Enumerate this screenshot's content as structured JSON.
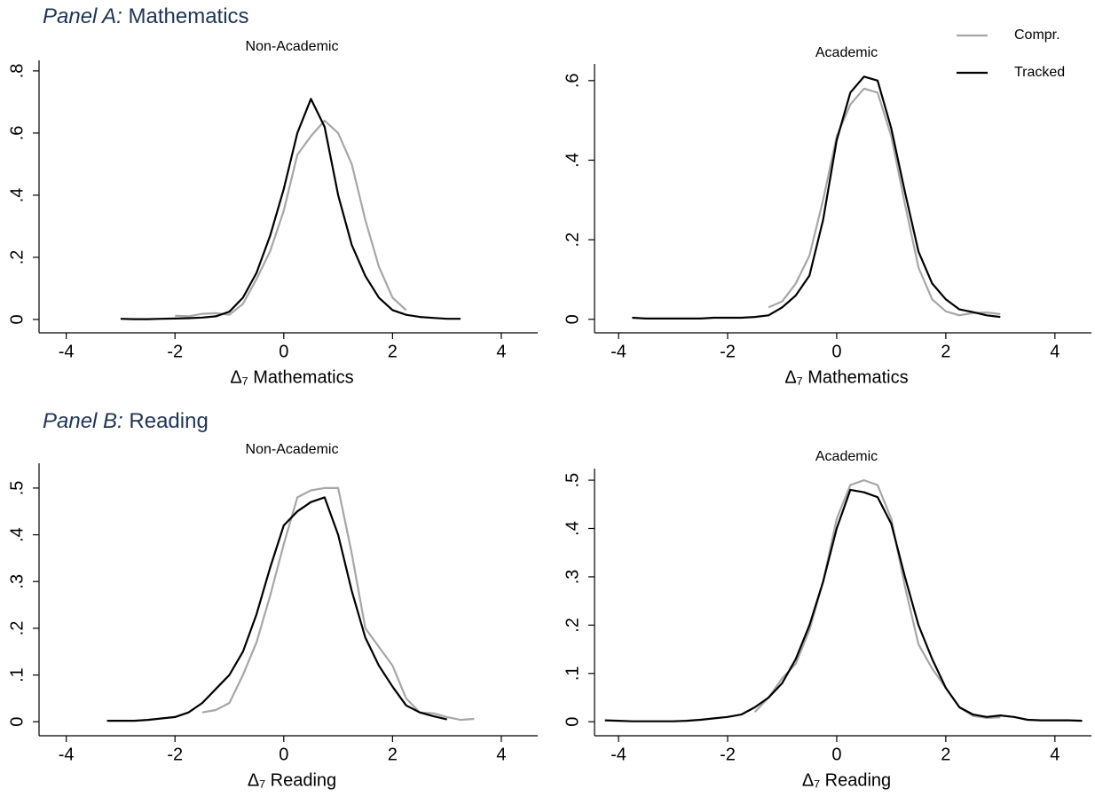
{
  "panels": [
    {
      "label": "Panel A:",
      "title": "Mathematics"
    },
    {
      "label": "Panel B:",
      "title": "Reading"
    }
  ],
  "chart_data": [
    {
      "type": "line",
      "subtitle": "Non-Academic",
      "xlabel": "Δ₇ Mathematics",
      "x": [
        -3,
        -2.75,
        -2.5,
        -2.25,
        -2,
        -1.75,
        -1.5,
        -1.25,
        -1,
        -0.75,
        -0.5,
        -0.25,
        0,
        0.25,
        0.5,
        0.75,
        1,
        1.25,
        1.5,
        1.75,
        2,
        2.25,
        2.5,
        2.75,
        3,
        3.25
      ],
      "series": [
        {
          "name": "Compr.",
          "color": "#a6a6a6",
          "values": [
            null,
            null,
            null,
            null,
            0.012,
            0.01,
            0.018,
            0.02,
            0.015,
            0.05,
            0.13,
            0.22,
            0.35,
            0.53,
            0.59,
            0.64,
            0.6,
            0.5,
            0.32,
            0.17,
            0.07,
            0.03,
            null,
            null,
            null,
            null
          ]
        },
        {
          "name": "Tracked",
          "color": "#000000",
          "values": [
            0.002,
            0.001,
            0.001,
            0.002,
            0.003,
            0.004,
            0.006,
            0.01,
            0.025,
            0.07,
            0.15,
            0.27,
            0.42,
            0.6,
            0.71,
            0.62,
            0.4,
            0.24,
            0.14,
            0.07,
            0.03,
            0.015,
            0.008,
            0.005,
            0.002,
            0.002
          ]
        }
      ],
      "xlim": [
        -4.5,
        4.67
      ],
      "xticks": [
        -4,
        -2,
        0,
        2,
        4
      ],
      "ylim": [
        -0.043,
        0.834
      ],
      "yticks": [
        0,
        {
          "value": 0.2,
          "label": ".2"
        },
        {
          "value": 0.4,
          "label": ".4"
        },
        {
          "value": 0.6,
          "label": ".6"
        },
        {
          "value": 0.8,
          "label": ".8"
        }
      ]
    },
    {
      "type": "line",
      "subtitle": "Academic",
      "xlabel": "Δ₇ Mathematics",
      "x": [
        -3.75,
        -3.5,
        -3.25,
        -3,
        -2.75,
        -2.5,
        -2.25,
        -2,
        -1.75,
        -1.5,
        -1.25,
        -1,
        -0.75,
        -0.5,
        -0.25,
        0,
        0.25,
        0.5,
        0.75,
        1,
        1.25,
        1.5,
        1.75,
        2,
        2.25,
        2.5,
        2.75,
        3
      ],
      "series": [
        {
          "name": "Compr.",
          "color": "#a6a6a6",
          "values": [
            null,
            null,
            null,
            null,
            null,
            null,
            null,
            null,
            null,
            null,
            0.03,
            0.045,
            0.09,
            0.16,
            0.3,
            0.46,
            0.54,
            0.58,
            0.57,
            0.46,
            0.29,
            0.13,
            0.05,
            0.02,
            0.01,
            0.016,
            0.017,
            0.013
          ]
        },
        {
          "name": "Tracked",
          "color": "#000000",
          "values": [
            0.004,
            0.002,
            0.002,
            0.002,
            0.002,
            0.002,
            0.004,
            0.004,
            0.004,
            0.006,
            0.01,
            0.03,
            0.06,
            0.11,
            0.25,
            0.45,
            0.57,
            0.61,
            0.6,
            0.48,
            0.32,
            0.17,
            0.09,
            0.05,
            0.025,
            0.018,
            0.01,
            0.006
          ]
        }
      ],
      "xlim": [
        -4.44,
        4.67
      ],
      "xticks": [
        -4,
        -2,
        0,
        2,
        4
      ],
      "ylim": [
        -0.034,
        0.642
      ],
      "yticks": [
        0,
        {
          "value": 0.2,
          "label": ".2"
        },
        {
          "value": 0.4,
          "label": ".4"
        },
        {
          "value": 0.6,
          "label": ".6"
        }
      ]
    },
    {
      "type": "line",
      "subtitle": "Non-Academic",
      "xlabel": "Δ₇ Reading",
      "x": [
        -3.25,
        -3,
        -2.75,
        -2.5,
        -2.25,
        -2,
        -1.75,
        -1.5,
        -1.25,
        -1,
        -0.75,
        -0.5,
        -0.25,
        0,
        0.25,
        0.5,
        0.75,
        1,
        1.25,
        1.5,
        1.75,
        2,
        2.25,
        2.5,
        2.75,
        3,
        3.25,
        3.5
      ],
      "series": [
        {
          "name": "Compr.",
          "color": "#a6a6a6",
          "values": [
            null,
            null,
            null,
            null,
            null,
            null,
            null,
            0.02,
            0.025,
            0.04,
            0.1,
            0.17,
            0.27,
            0.38,
            0.48,
            0.495,
            0.5,
            0.5,
            0.36,
            0.2,
            0.16,
            0.12,
            0.05,
            0.02,
            0.018,
            0.01,
            0.004,
            0.006
          ]
        },
        {
          "name": "Tracked",
          "color": "#000000",
          "values": [
            0.002,
            0.002,
            0.002,
            0.004,
            0.007,
            0.01,
            0.02,
            0.04,
            0.07,
            0.1,
            0.15,
            0.23,
            0.33,
            0.42,
            0.45,
            0.47,
            0.48,
            0.4,
            0.28,
            0.18,
            0.12,
            0.075,
            0.035,
            0.02,
            0.012,
            0.005,
            null,
            null
          ]
        }
      ],
      "xlim": [
        -4.5,
        4.67
      ],
      "xticks": [
        -4,
        -2,
        0,
        2,
        4
      ],
      "ylim": [
        -0.03,
        0.553
      ],
      "yticks": [
        0,
        {
          "value": 0.1,
          "label": ".1"
        },
        {
          "value": 0.2,
          "label": ".2"
        },
        {
          "value": 0.3,
          "label": ".3"
        },
        {
          "value": 0.4,
          "label": ".4"
        },
        {
          "value": 0.5,
          "label": ".5"
        }
      ]
    },
    {
      "type": "line",
      "subtitle": "Academic",
      "xlabel": "Δ₇ Reading",
      "x": [
        -4.25,
        -4,
        -3.75,
        -3.5,
        -3.25,
        -3,
        -2.75,
        -2.5,
        -2.25,
        -2,
        -1.75,
        -1.5,
        -1.25,
        -1,
        -0.75,
        -0.5,
        -0.25,
        0,
        0.25,
        0.5,
        0.75,
        1,
        1.25,
        1.5,
        1.75,
        2,
        2.25,
        2.5,
        2.75,
        3,
        3.25,
        3.5,
        3.75,
        4,
        4.25,
        4.5
      ],
      "series": [
        {
          "name": "Compr.",
          "color": "#a6a6a6",
          "values": [
            null,
            null,
            null,
            null,
            null,
            null,
            null,
            null,
            null,
            null,
            null,
            0.02,
            0.05,
            0.09,
            0.12,
            0.19,
            0.29,
            0.42,
            0.49,
            0.5,
            0.49,
            0.42,
            0.28,
            0.16,
            0.11,
            0.07,
            0.03,
            0.012,
            0.008,
            0.009,
            null,
            null,
            null,
            null,
            null,
            null
          ]
        },
        {
          "name": "Tracked",
          "color": "#000000",
          "values": [
            0.003,
            0.002,
            0.001,
            0.001,
            0.001,
            0.001,
            0.002,
            0.004,
            0.007,
            0.01,
            0.015,
            0.03,
            0.05,
            0.08,
            0.13,
            0.2,
            0.29,
            0.4,
            0.48,
            0.475,
            0.465,
            0.41,
            0.3,
            0.2,
            0.13,
            0.07,
            0.03,
            0.015,
            0.01,
            0.013,
            0.01,
            0.004,
            0.003,
            0.003,
            0.003,
            0.002
          ]
        }
      ],
      "xlim": [
        -4.44,
        4.67
      ],
      "xticks": [
        -4,
        -2,
        0,
        2,
        4
      ],
      "ylim": [
        -0.029,
        0.524
      ],
      "yticks": [
        0,
        {
          "value": 0.1,
          "label": ".1"
        },
        {
          "value": 0.2,
          "label": ".2"
        },
        {
          "value": 0.3,
          "label": ".3"
        },
        {
          "value": 0.4,
          "label": ".4"
        },
        {
          "value": 0.5,
          "label": ".5"
        }
      ]
    }
  ]
}
